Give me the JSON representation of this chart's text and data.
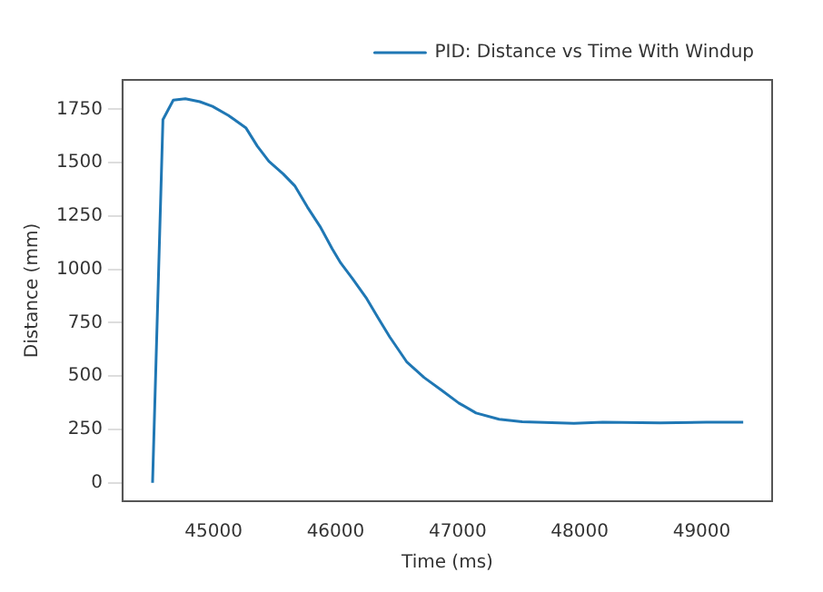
{
  "chart_data": {
    "type": "line",
    "xlabel": "Time (ms)",
    "ylabel": "Distance (mm)",
    "legend": "top right",
    "grid": false,
    "marker": "none",
    "line_style": "solid",
    "xlim": [
      44254,
      49577
    ],
    "ylim": [
      -86,
      1888
    ],
    "xticks": [
      45000,
      46000,
      47000,
      48000,
      49000
    ],
    "yticks": [
      0,
      250,
      500,
      750,
      1000,
      1250,
      1500,
      1750
    ],
    "series": [
      {
        "name": "PID: Distance vs Time With Windup",
        "color": "#1f77b4",
        "x": [
          44500,
          44585,
          44670,
          44769,
          44887,
          44991,
          45123,
          45264,
          45358,
          45453,
          45571,
          45665,
          45769,
          45877,
          45972,
          46042,
          46137,
          46255,
          46349,
          46443,
          46585,
          46726,
          46868,
          47009,
          47151,
          47340,
          47528,
          47953,
          48189,
          48660,
          49038,
          49340
        ],
        "values": [
          0,
          1702,
          1793,
          1800,
          1786,
          1764,
          1721,
          1664,
          1578,
          1507,
          1447,
          1392,
          1292,
          1197,
          1097,
          1030,
          958,
          863,
          772,
          684,
          565,
          493,
          434,
          374,
          327,
          298,
          286,
          279,
          284,
          281,
          284,
          284
        ]
      }
    ]
  }
}
